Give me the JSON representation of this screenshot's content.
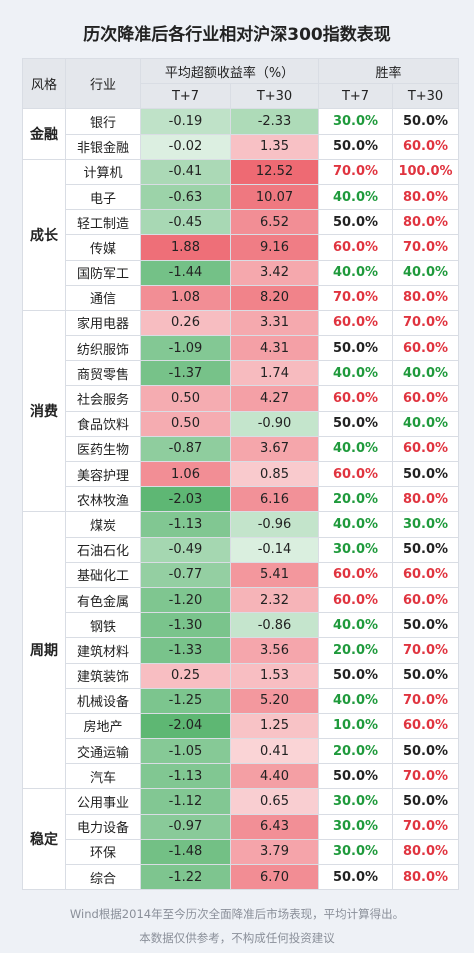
{
  "title": "历次降准后各行业相对沪深300指数表现",
  "header": {
    "style": "风格",
    "industry": "行业",
    "excess": "平均超额收益率（%）",
    "win": "胜率",
    "sub": [
      "T+7",
      "T+30",
      "T+7",
      "T+30"
    ]
  },
  "table": {
    "groups": [
      {
        "style": "金融",
        "rows": [
          {
            "industry": "银行",
            "cells": [
              "-0.19",
              "-2.33",
              "30.0%",
              "50.0%"
            ]
          },
          {
            "industry": "非银金融",
            "cells": [
              "-0.02",
              "1.35",
              "50.0%",
              "60.0%"
            ]
          }
        ]
      },
      {
        "style": "成长",
        "rows": [
          {
            "industry": "计算机",
            "cells": [
              "-0.41",
              "12.52",
              "70.0%",
              "100.0%"
            ]
          },
          {
            "industry": "电子",
            "cells": [
              "-0.63",
              "10.07",
              "40.0%",
              "80.0%"
            ]
          },
          {
            "industry": "轻工制造",
            "cells": [
              "-0.45",
              "6.52",
              "50.0%",
              "80.0%"
            ]
          },
          {
            "industry": "传媒",
            "cells": [
              "1.88",
              "9.16",
              "60.0%",
              "70.0%"
            ]
          },
          {
            "industry": "国防军工",
            "cells": [
              "-1.44",
              "3.42",
              "40.0%",
              "40.0%"
            ]
          },
          {
            "industry": "通信",
            "cells": [
              "1.08",
              "8.20",
              "70.0%",
              "80.0%"
            ]
          }
        ]
      },
      {
        "style": "消费",
        "rows": [
          {
            "industry": "家用电器",
            "cells": [
              "0.26",
              "3.31",
              "60.0%",
              "70.0%"
            ]
          },
          {
            "industry": "纺织服饰",
            "cells": [
              "-1.09",
              "4.31",
              "50.0%",
              "60.0%"
            ]
          },
          {
            "industry": "商贸零售",
            "cells": [
              "-1.37",
              "1.74",
              "40.0%",
              "40.0%"
            ]
          },
          {
            "industry": "社会服务",
            "cells": [
              "0.50",
              "4.27",
              "60.0%",
              "60.0%"
            ]
          },
          {
            "industry": "食品饮料",
            "cells": [
              "0.50",
              "-0.90",
              "50.0%",
              "40.0%"
            ]
          },
          {
            "industry": "医药生物",
            "cells": [
              "-0.87",
              "3.67",
              "40.0%",
              "60.0%"
            ]
          },
          {
            "industry": "美容护理",
            "cells": [
              "1.06",
              "0.85",
              "60.0%",
              "50.0%"
            ]
          },
          {
            "industry": "农林牧渔",
            "cells": [
              "-2.03",
              "6.16",
              "20.0%",
              "80.0%"
            ]
          }
        ]
      },
      {
        "style": "周期",
        "rows": [
          {
            "industry": "煤炭",
            "cells": [
              "-1.13",
              "-0.96",
              "40.0%",
              "30.0%"
            ]
          },
          {
            "industry": "石油石化",
            "cells": [
              "-0.49",
              "-0.14",
              "30.0%",
              "50.0%"
            ]
          },
          {
            "industry": "基础化工",
            "cells": [
              "-0.77",
              "5.41",
              "60.0%",
              "60.0%"
            ]
          },
          {
            "industry": "有色金属",
            "cells": [
              "-1.20",
              "2.32",
              "60.0%",
              "60.0%"
            ]
          },
          {
            "industry": "钢铁",
            "cells": [
              "-1.30",
              "-0.86",
              "40.0%",
              "50.0%"
            ]
          },
          {
            "industry": "建筑材料",
            "cells": [
              "-1.33",
              "3.56",
              "20.0%",
              "70.0%"
            ]
          },
          {
            "industry": "建筑装饰",
            "cells": [
              "0.25",
              "1.53",
              "50.0%",
              "50.0%"
            ]
          },
          {
            "industry": "机械设备",
            "cells": [
              "-1.25",
              "5.20",
              "40.0%",
              "70.0%"
            ]
          },
          {
            "industry": "房地产",
            "cells": [
              "-2.04",
              "1.25",
              "10.0%",
              "60.0%"
            ]
          },
          {
            "industry": "交通运输",
            "cells": [
              "-1.05",
              "0.41",
              "20.0%",
              "50.0%"
            ]
          },
          {
            "industry": "汽车",
            "cells": [
              "-1.13",
              "4.40",
              "50.0%",
              "70.0%"
            ]
          }
        ]
      },
      {
        "style": "稳定",
        "rows": [
          {
            "industry": "公用事业",
            "cells": [
              "-1.12",
              "0.65",
              "30.0%",
              "50.0%"
            ]
          },
          {
            "industry": "电力设备",
            "cells": [
              "-0.97",
              "6.43",
              "30.0%",
              "70.0%"
            ]
          },
          {
            "industry": "环保",
            "cells": [
              "-1.48",
              "3.79",
              "30.0%",
              "80.0%"
            ]
          },
          {
            "industry": "综合",
            "cells": [
              "-1.22",
              "6.70",
              "50.0%",
              "80.0%"
            ]
          }
        ]
      }
    ]
  },
  "footer": [
    "Wind根据2014年至今历次全面降准后市场表现，平均计算得出。",
    "本数据仅供参考，不构成任何投资建议"
  ]
}
